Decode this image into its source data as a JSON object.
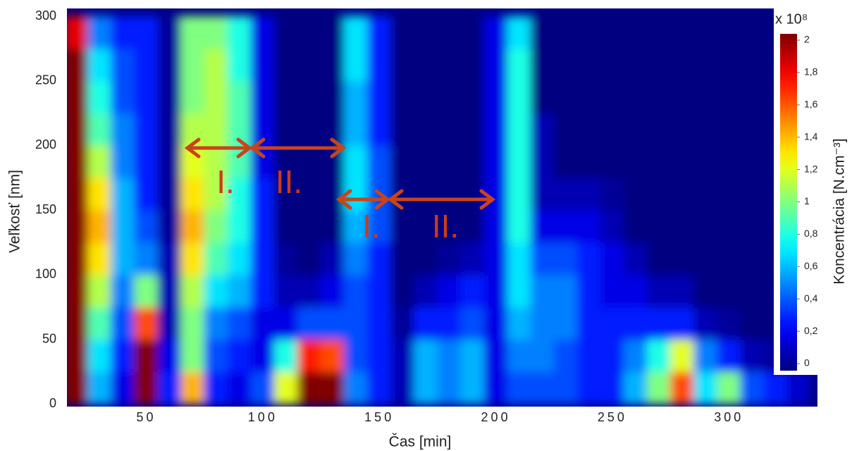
{
  "chart_data": {
    "type": "heatmap",
    "x_label": "Čas [min]",
    "y_label": "Veľkosť [nm]",
    "colorbar_label": "Koncentrácia [N.cm⁻³]",
    "colorbar_scale": "x 10⁸",
    "x": [
      20,
      30,
      40,
      50,
      60,
      70,
      80,
      90,
      100,
      110,
      120,
      130,
      140,
      150,
      160,
      170,
      180,
      190,
      200,
      210,
      220,
      230,
      240,
      250,
      260,
      270,
      280,
      290,
      300,
      310,
      320,
      330
    ],
    "y": [
      12.5,
      37.5,
      62.5,
      87.5,
      112.5,
      137.5,
      162.5,
      187.5,
      212.5,
      237.5,
      262.5,
      287.5
    ],
    "z": [
      [
        2,
        2,
        2,
        2,
        2,
        2,
        2,
        2,
        2,
        2,
        2,
        1.8
      ],
      [
        0.6,
        0.7,
        0.9,
        1.1,
        1.3,
        1.4,
        1.3,
        1.1,
        0.9,
        0.8,
        0.7,
        0.5
      ],
      [
        0.2,
        0.3,
        0.4,
        0.5,
        0.6,
        0.6,
        0.6,
        0.5,
        0.5,
        0.4,
        0.4,
        0.3
      ],
      [
        2,
        2,
        1.6,
        1,
        0.5,
        0.4,
        0.3,
        0.3,
        0.3,
        0.3,
        0.3,
        0.3
      ],
      [
        0.3,
        0.2,
        0.1,
        0.1,
        0.1,
        0.05,
        0.05,
        0.05,
        0.05,
        0.05,
        0.05,
        0.05
      ],
      [
        1.4,
        1,
        1,
        1.1,
        1.3,
        1.4,
        1.3,
        1.2,
        1.1,
        1,
        1,
        1
      ],
      [
        0.3,
        0.4,
        0.5,
        0.7,
        0.9,
        1,
        1.1,
        1.1,
        1.1,
        1.1,
        1.1,
        1
      ],
      [
        0.2,
        0.3,
        0.4,
        0.6,
        0.7,
        0.8,
        0.8,
        0.9,
        0.9,
        0.9,
        0.8,
        0.8
      ],
      [
        0.4,
        0.2,
        0.2,
        0.3,
        0.3,
        0.3,
        0.3,
        0.2,
        0.2,
        0.2,
        0.2,
        0.2
      ],
      [
        1.2,
        0.8,
        0.2,
        0.1,
        0.05,
        0,
        0,
        0,
        0,
        0,
        0,
        0
      ],
      [
        2,
        1.7,
        0.4,
        0.1,
        0,
        0,
        0,
        0,
        0,
        0,
        0,
        0
      ],
      [
        2,
        1.6,
        0.4,
        0.2,
        0.1,
        0,
        0,
        0,
        0,
        0,
        0,
        0
      ],
      [
        0.5,
        0.4,
        0.4,
        0.4,
        0.5,
        0.6,
        0.7,
        0.7,
        0.6,
        0.6,
        0.7,
        0.7
      ],
      [
        0.3,
        0.3,
        0.3,
        0.3,
        0.3,
        0.4,
        0.4,
        0.4,
        0.3,
        0.3,
        0.3,
        0.3
      ],
      [
        0.1,
        0.1,
        0.05,
        0,
        0,
        0,
        0,
        0,
        0,
        0,
        0,
        0
      ],
      [
        0.6,
        0.6,
        0.3,
        0.1,
        0,
        0,
        0,
        0,
        0,
        0,
        0,
        0
      ],
      [
        0.5,
        0.5,
        0.3,
        0.2,
        0.05,
        0,
        0,
        0,
        0,
        0,
        0,
        0
      ],
      [
        0.6,
        0.6,
        0.4,
        0.3,
        0.1,
        0,
        0,
        0,
        0,
        0,
        0,
        0
      ],
      [
        0.2,
        0.2,
        0.2,
        0.2,
        0.2,
        0.2,
        0.2,
        0.2,
        0.2,
        0.2,
        0.2,
        0.2
      ],
      [
        0.4,
        0.5,
        0.6,
        0.7,
        0.7,
        0.8,
        0.8,
        0.8,
        0.8,
        0.8,
        0.8,
        0.7
      ],
      [
        0.4,
        0.5,
        0.5,
        0.5,
        0.4,
        0.2,
        0.1,
        0.1,
        0.1,
        0,
        0,
        0
      ],
      [
        0.4,
        0.4,
        0.5,
        0.5,
        0.4,
        0.2,
        0.1,
        0,
        0,
        0,
        0,
        0
      ],
      [
        0.3,
        0.3,
        0.3,
        0.3,
        0.3,
        0.2,
        0.1,
        0,
        0,
        0,
        0,
        0
      ],
      [
        0.3,
        0.3,
        0.3,
        0.2,
        0.2,
        0.1,
        0.05,
        0,
        0,
        0,
        0,
        0
      ],
      [
        0.6,
        0.5,
        0.3,
        0.2,
        0.1,
        0,
        0,
        0,
        0,
        0,
        0,
        0
      ],
      [
        1,
        0.8,
        0.3,
        0.1,
        0,
        0,
        0,
        0,
        0,
        0,
        0,
        0
      ],
      [
        1.6,
        1.2,
        0.3,
        0.1,
        0,
        0,
        0,
        0,
        0,
        0,
        0,
        0
      ],
      [
        0.7,
        0.5,
        0.1,
        0,
        0,
        0,
        0,
        0,
        0,
        0,
        0,
        0
      ],
      [
        1,
        0.3,
        0.05,
        0,
        0,
        0,
        0,
        0,
        0,
        0,
        0,
        0
      ],
      [
        0.4,
        0.1,
        0,
        0,
        0,
        0,
        0,
        0,
        0,
        0,
        0,
        0
      ],
      [
        0.3,
        0.05,
        0,
        0,
        0,
        0,
        0,
        0,
        0,
        0,
        0,
        0
      ],
      [
        0.15,
        0,
        0,
        0,
        0,
        0,
        0,
        0,
        0,
        0,
        0,
        0
      ]
    ],
    "xlim": [
      16,
      338
    ],
    "ylim": [
      -2,
      306
    ],
    "xticks": [
      50,
      100,
      150,
      200,
      250,
      300
    ],
    "yticks": [
      0,
      50,
      100,
      150,
      200,
      250,
      300
    ],
    "zlim": [
      0,
      2
    ],
    "zticks": [
      0,
      {
        "value": 0.2,
        "label": "0,2"
      },
      {
        "value": 0.4,
        "label": "0,4"
      },
      {
        "value": 0.6,
        "label": "0,6"
      },
      {
        "value": 0.8,
        "label": "0,8"
      },
      1,
      {
        "value": 1.2,
        "label": "1,2"
      },
      {
        "value": 1.4,
        "label": "1,4"
      },
      {
        "value": 1.6,
        "label": "1,6"
      },
      {
        "value": 1.8,
        "label": "1,8"
      },
      2
    ],
    "colormap": "jet",
    "annotations": [
      "I.",
      "II.",
      "I.",
      "II."
    ]
  }
}
